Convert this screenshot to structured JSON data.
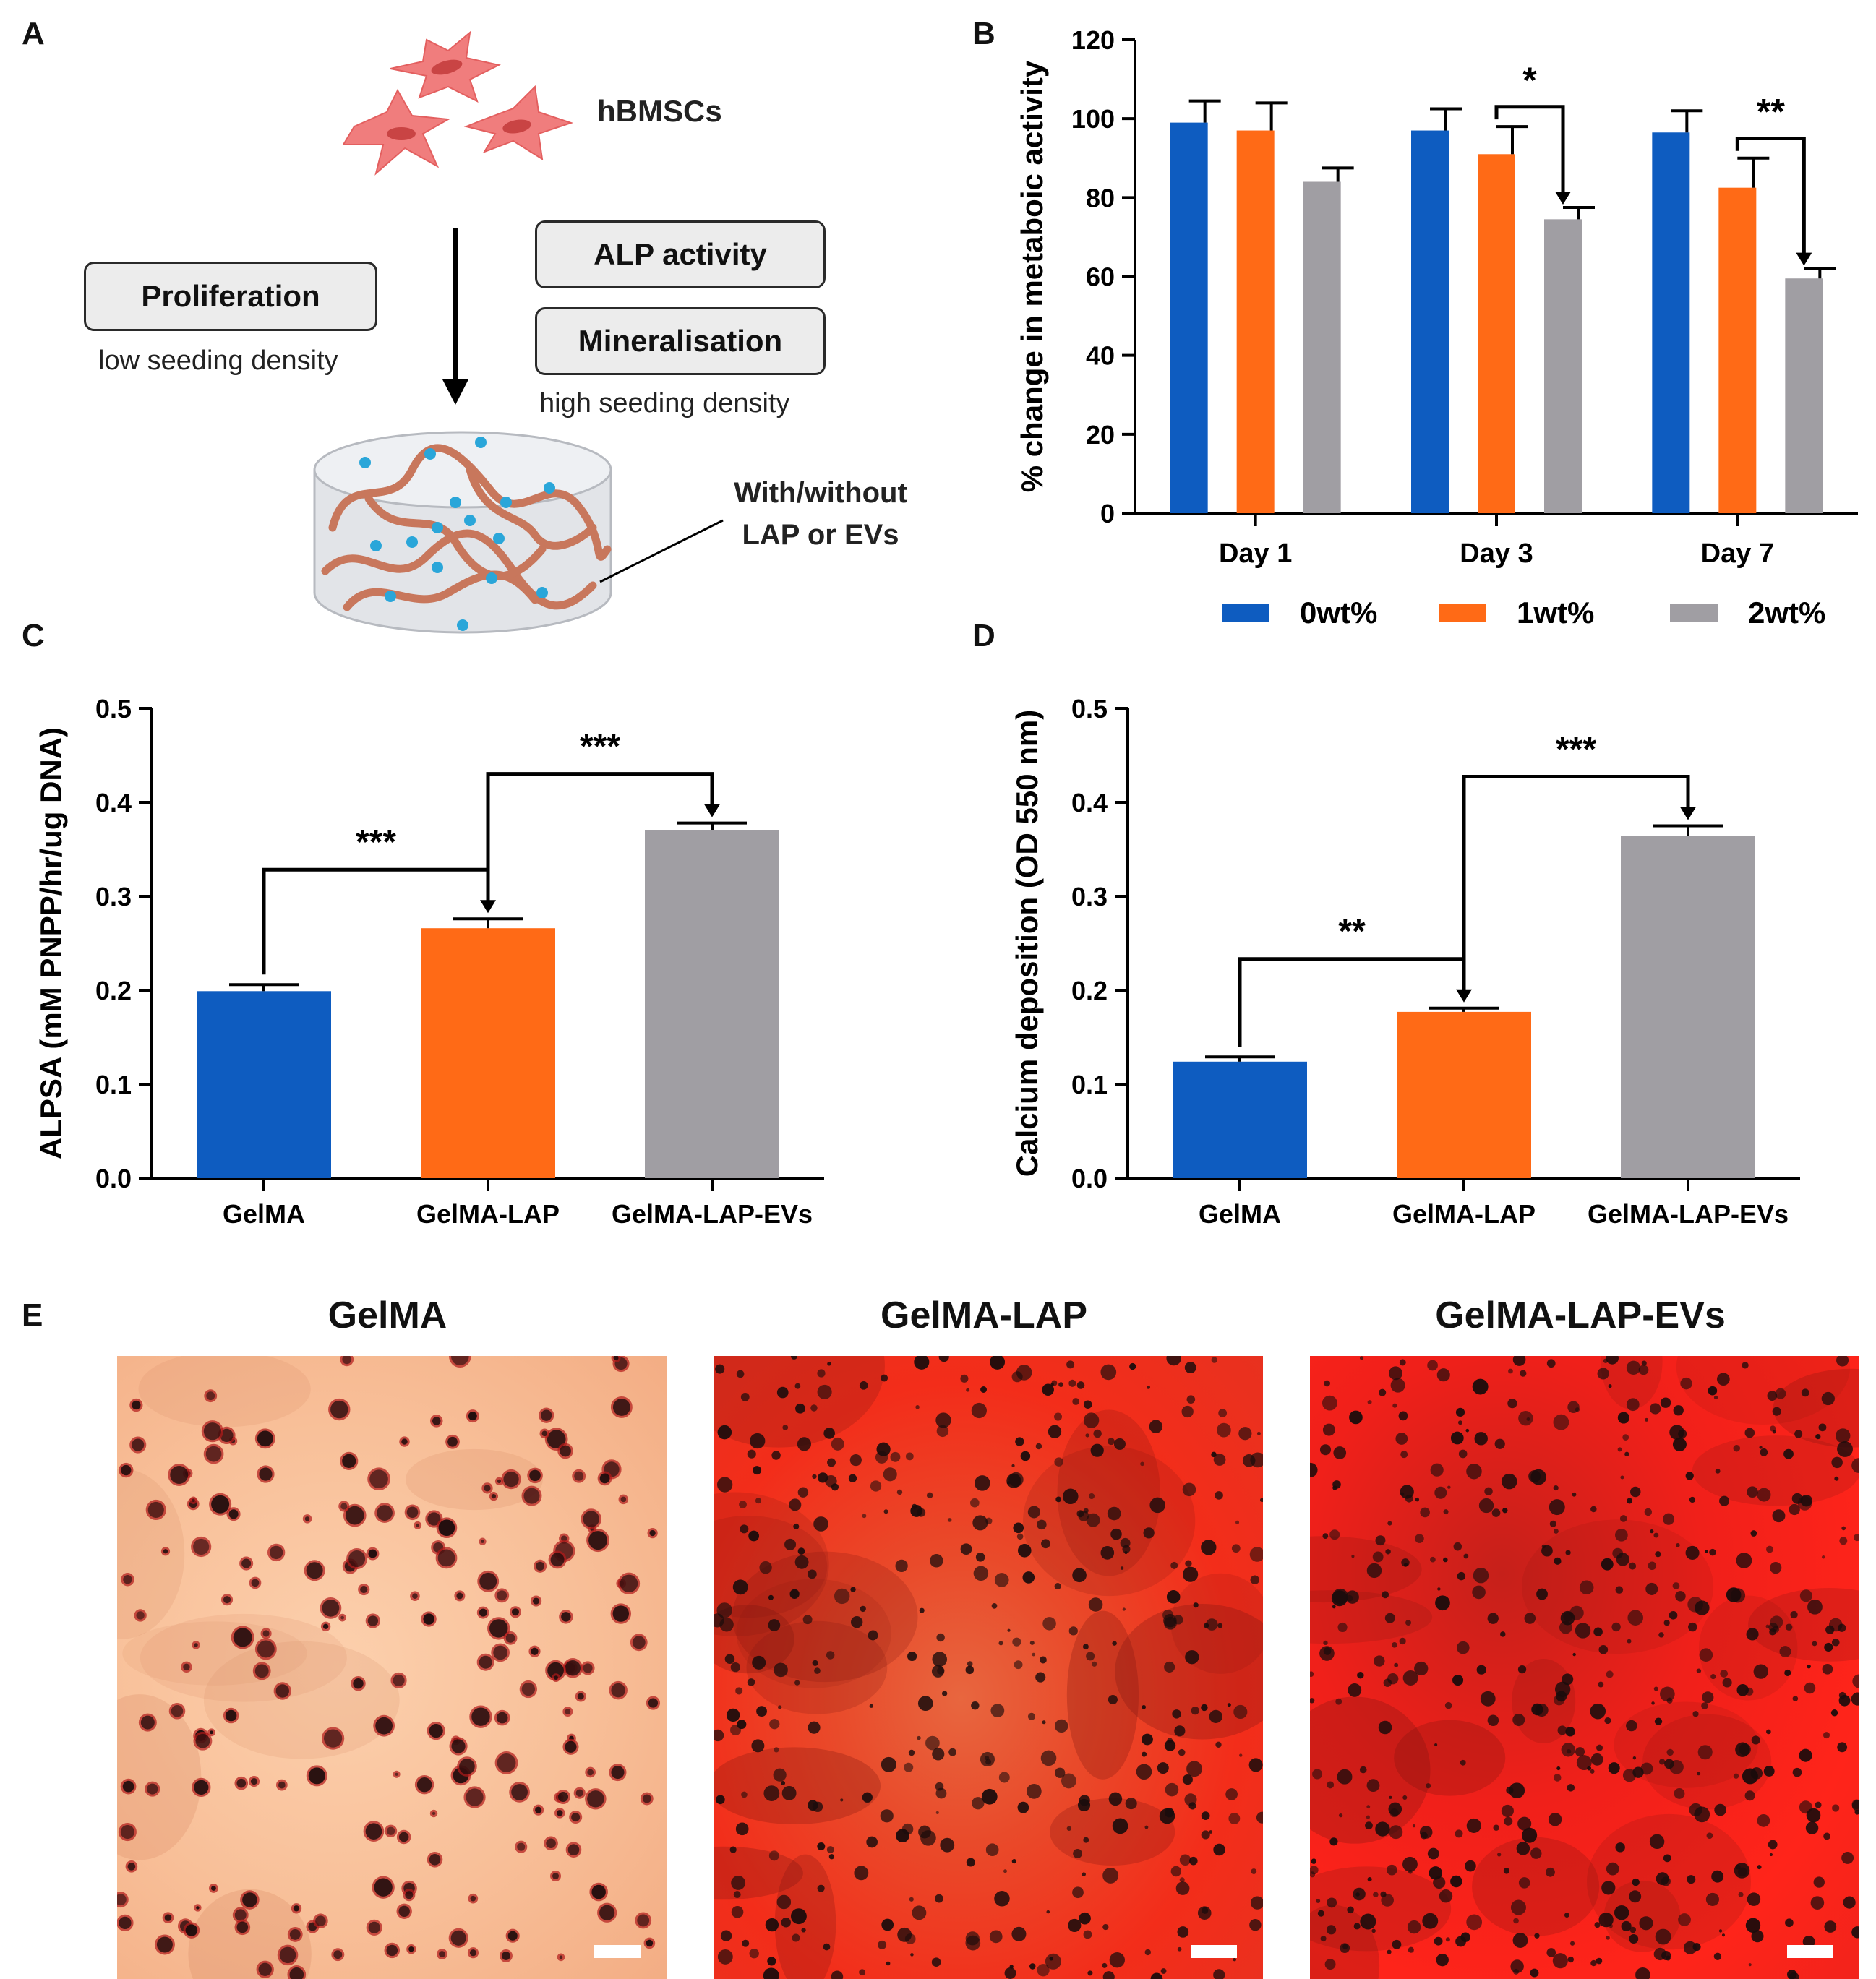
{
  "panels": {
    "a": "A",
    "b": "B",
    "c": "C",
    "d": "D",
    "e": "E"
  },
  "schematic": {
    "cells_label": "hBMSCs",
    "proliferation": "Proliferation",
    "low_density": "low seeding density",
    "alp": "ALP activity",
    "mineralisation": "Mineralisation",
    "high_density": "high seeding density",
    "hydrogel_label_1": "With/without",
    "hydrogel_label_2": "LAP or EVs"
  },
  "colors": {
    "blue": "#0e5cc0",
    "orange": "#ff6a16",
    "gray": "#a09ea3"
  },
  "chart_data": [
    {
      "id": "B",
      "type": "bar",
      "ylabel": "% change in metaboic activity",
      "ylim": [
        0,
        120
      ],
      "yticks": [
        0,
        20,
        40,
        60,
        80,
        100,
        120
      ],
      "categories": [
        "Day 1",
        "Day 3",
        "Day 7"
      ],
      "series": [
        {
          "name": "0wt%",
          "values": [
            99,
            97,
            96.5
          ],
          "errors": [
            5.5,
            5.5,
            5.5
          ]
        },
        {
          "name": "1wt%",
          "values": [
            97,
            91,
            82.5
          ],
          "errors": [
            7,
            7,
            7.5
          ]
        },
        {
          "name": "2wt%",
          "values": [
            84,
            74.5,
            59.5
          ],
          "errors": [
            3.5,
            3,
            2.5
          ]
        }
      ],
      "significance": [
        {
          "label": "*",
          "category": "Day 3",
          "from": "1wt%",
          "to": "2wt%"
        },
        {
          "label": "**",
          "category": "Day 7",
          "from": "1wt%",
          "to": "2wt%"
        }
      ]
    },
    {
      "id": "C",
      "type": "bar",
      "ylabel": "ALPSA (mM PNPP/hr/ug DNA)",
      "ylim": [
        0,
        0.5
      ],
      "yticks": [
        "0.0",
        "0.1",
        "0.2",
        "0.3",
        "0.4",
        "0.5"
      ],
      "categories": [
        "GelMA",
        "GelMA-LAP",
        "GelMA-LAP-EVs"
      ],
      "values": [
        0.199,
        0.266,
        0.37
      ],
      "errors": [
        0.007,
        0.01,
        0.008
      ],
      "significance": [
        {
          "label": "***",
          "from": "GelMA",
          "to": "GelMA-LAP"
        },
        {
          "label": "***",
          "from": "GelMA-LAP",
          "to": "GelMA-LAP-EVs"
        }
      ]
    },
    {
      "id": "D",
      "type": "bar",
      "ylabel": "Calcium deposition (OD 550 nm)",
      "ylim": [
        0,
        0.5
      ],
      "yticks": [
        "0.0",
        "0.1",
        "0.2",
        "0.3",
        "0.4",
        "0.5"
      ],
      "categories": [
        "GelMA",
        "GelMA-LAP",
        "GelMA-LAP-EVs"
      ],
      "values": [
        0.124,
        0.177,
        0.364
      ],
      "errors": [
        0.005,
        0.004,
        0.011
      ],
      "significance": [
        {
          "label": "**",
          "from": "GelMA",
          "to": "GelMA-LAP"
        },
        {
          "label": "***",
          "from": "GelMA-LAP",
          "to": "GelMA-LAP-EVs"
        }
      ]
    }
  ],
  "micrographs": [
    {
      "title": "GelMA",
      "stain_level": 0.15
    },
    {
      "title": "GelMA-LAP",
      "stain_level": 0.7
    },
    {
      "title": "GelMA-LAP-EVs",
      "stain_level": 0.95
    }
  ]
}
